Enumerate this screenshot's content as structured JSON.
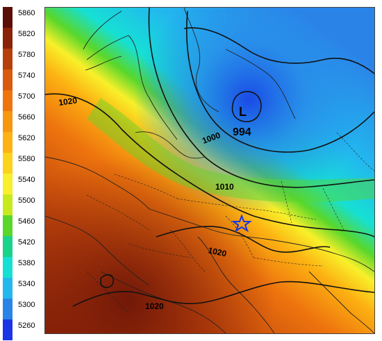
{
  "legend": {
    "values": [
      "5860",
      "5820",
      "5780",
      "5740",
      "5700",
      "5660",
      "5620",
      "5580",
      "5540",
      "5500",
      "5460",
      "5420",
      "5380",
      "5340",
      "5300",
      "5260"
    ],
    "colors": [
      "#5a0e07",
      "#8a2208",
      "#b5400c",
      "#d85a0d",
      "#ee740e",
      "#f7960f",
      "#fcb212",
      "#fcd31a",
      "#f8f02a",
      "#c6ea1d",
      "#59d72b",
      "#19d38a",
      "#16e0d4",
      "#22b8ee",
      "#2a84e8",
      "#1a35e6"
    ]
  },
  "map": {
    "isobars": [
      {
        "id": "iso-1020-west",
        "label": "1020"
      },
      {
        "id": "iso-1000",
        "label": "1000"
      },
      {
        "id": "iso-1010",
        "label": "1010"
      },
      {
        "id": "iso-1020-central",
        "label": "1020"
      },
      {
        "id": "iso-1020-south",
        "label": "1020"
      }
    ],
    "low": {
      "symbol": "L",
      "pressure": "994"
    },
    "marker": "star-icon"
  }
}
